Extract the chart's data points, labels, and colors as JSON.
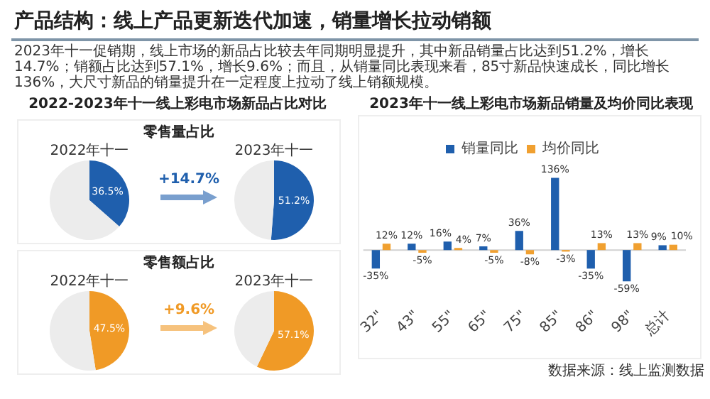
{
  "chart_data": [
    {
      "type": "other",
      "title": "产品结构：线上产品更新迭代加速，销量增长拉动销额",
      "subtitle": "2023年十一促销期，线上市场的新品占比较去年同期明显提升，其中新品销量占比达到51.2%，增长14.7%；销额占比达到57.1%，增长9.6%；而且，从销量同比表现来看，85寸新品快速成长，同比增长136%，大尺寸新品的销量提升在一定程度上拉动了线上销额规模。",
      "annotations": [
        "2022-2023年十一线上彩电市场新品占比对比",
        "零售量占比",
        "+14.7%",
        "零售额占比",
        "+9.6%"
      ]
    },
    {
      "type": "pie",
      "title": "2022年十一",
      "categories": [
        null,
        null
      ],
      "values": [
        36.5,
        63.5
      ],
      "colors": [
        "#1f5fad",
        "#ececec"
      ],
      "value_labels": [
        "36.5%",
        null
      ]
    },
    {
      "type": "pie",
      "title": "2023年十一",
      "categories": [
        null,
        null
      ],
      "values": [
        51.2,
        48.8
      ],
      "colors": [
        "#1f5fad",
        "#ececec"
      ],
      "value_labels": [
        "51.2%",
        null
      ]
    },
    {
      "type": "pie",
      "title": "2022年十一",
      "categories": [
        null,
        null
      ],
      "values": [
        47.5,
        52.5
      ],
      "colors": [
        "#f09a26",
        "#ececec"
      ],
      "value_labels": [
        "47.5%",
        null
      ]
    },
    {
      "type": "pie",
      "title": "2023年十一",
      "categories": [
        null,
        null
      ],
      "values": [
        57.1,
        42.9
      ],
      "colors": [
        "#f09a26",
        "#ececec"
      ],
      "value_labels": [
        "57.1%",
        null
      ]
    },
    {
      "type": "bar",
      "title": "2023年十一线上彩电市场新品销量及均价同比表现",
      "categories": [
        "32\"",
        "43\"",
        "55\"",
        "65\"",
        "75\"",
        "85\"",
        "86\"",
        "98\"",
        "总计"
      ],
      "series": [
        {
          "name": "销量同比",
          "color": "#1f5fad",
          "values": [
            -35,
            12,
            16,
            7,
            36,
            136,
            -35,
            -59,
            9
          ],
          "value_labels": [
            "-35%",
            "12%",
            "16%",
            "7%",
            "36%",
            "136%",
            "-35%",
            "-59%",
            "9%"
          ]
        },
        {
          "name": "均价同比",
          "color": "#f0a030",
          "values": [
            12,
            -5,
            4,
            -5,
            -8,
            -3,
            13,
            13,
            10
          ],
          "value_labels": [
            "12%",
            "-5%",
            "4%",
            "-5%",
            "-8%",
            "-3%",
            "13%",
            "13%",
            "10%"
          ]
        }
      ],
      "tick_labels": "x",
      "grid": false,
      "legend": "top",
      "annotations": [
        "数据来源：线上监测数据"
      ]
    }
  ]
}
